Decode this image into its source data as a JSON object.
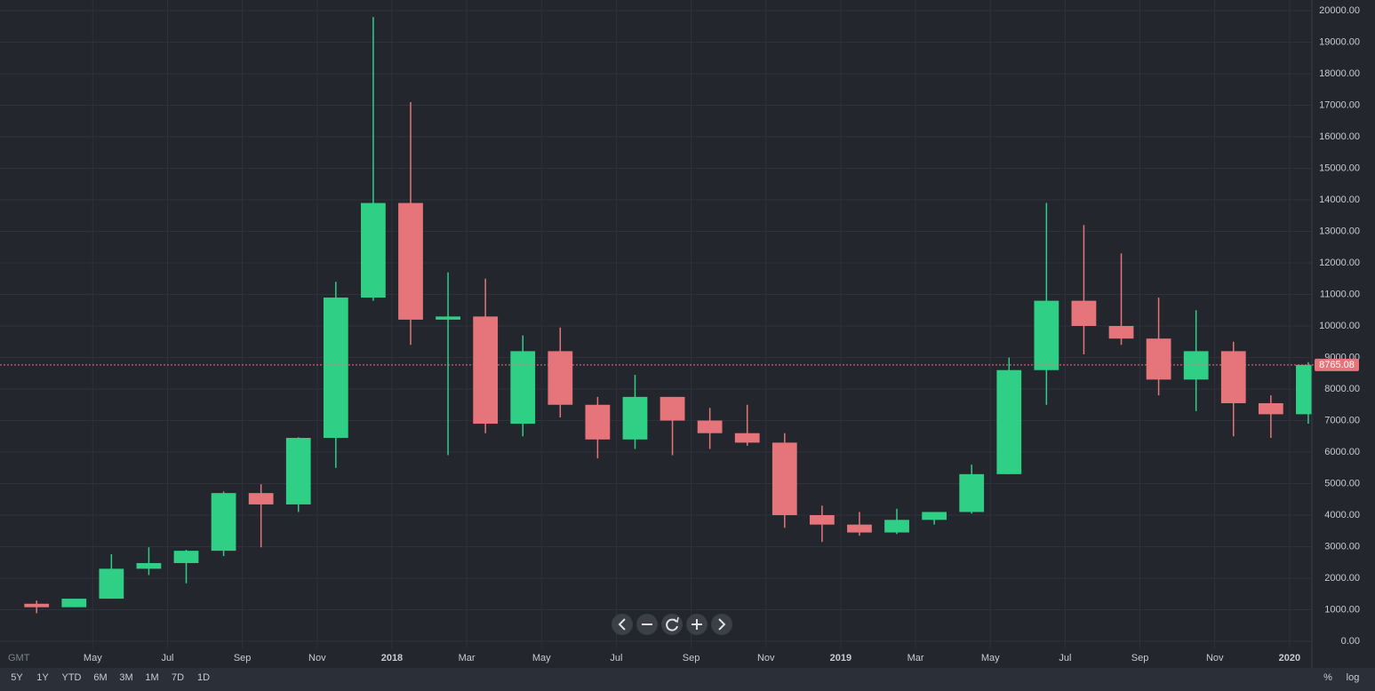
{
  "chart_data": {
    "type": "candlestick",
    "x": [
      "2017-03",
      "2017-04",
      "2017-05",
      "2017-06",
      "2017-07",
      "2017-08",
      "2017-09",
      "2017-10",
      "2017-11",
      "2017-12",
      "2018-01",
      "2018-02",
      "2018-03",
      "2018-04",
      "2018-05",
      "2018-06",
      "2018-07",
      "2018-08",
      "2018-09",
      "2018-10",
      "2018-11",
      "2018-12",
      "2019-01",
      "2019-02",
      "2019-03",
      "2019-04",
      "2019-05",
      "2019-06",
      "2019-07",
      "2019-08",
      "2019-09",
      "2019-10",
      "2019-11",
      "2019-12",
      "2020-01"
    ],
    "open": [
      1190,
      1080,
      1350,
      2300,
      2480,
      2870,
      4700,
      4340,
      6450,
      10900,
      13900,
      10200,
      10300,
      6900,
      9200,
      7500,
      6400,
      7750,
      7000,
      6600,
      6300,
      4000,
      3700,
      3450,
      3850,
      4100,
      5300,
      8600,
      10800,
      10000,
      9600,
      8300,
      9200,
      7550,
      7200
    ],
    "high": [
      1290,
      1350,
      2760,
      2980,
      2900,
      4750,
      4980,
      6470,
      11400,
      19800,
      17100,
      11700,
      11500,
      9700,
      9950,
      7750,
      8450,
      7750,
      7400,
      7500,
      6600,
      4300,
      4100,
      4200,
      4100,
      5600,
      9000,
      13900,
      13200,
      12300,
      10900,
      10500,
      9500,
      7800,
      8850
    ],
    "low": [
      890,
      1080,
      1350,
      2100,
      1840,
      2700,
      2980,
      4100,
      5500,
      10800,
      9400,
      5900,
      6600,
      6500,
      7100,
      5800,
      6100,
      5900,
      6100,
      6200,
      3600,
      3150,
      3350,
      3400,
      3700,
      4050,
      5300,
      7500,
      9100,
      9400,
      7800,
      7300,
      6500,
      6450,
      6900
    ],
    "close": [
      1080,
      1350,
      2300,
      2480,
      2870,
      4700,
      4340,
      6450,
      10900,
      13900,
      10200,
      10300,
      6900,
      9200,
      7500,
      6400,
      7750,
      7000,
      6600,
      6300,
      4000,
      3700,
      3450,
      3850,
      4100,
      5300,
      8600,
      10800,
      10000,
      9600,
      8300,
      9200,
      7550,
      7200,
      8765.08
    ],
    "up_color": "#2fcf86",
    "down_color": "#e5757a",
    "last_price": 8765.08,
    "ylim": [
      0,
      20000
    ],
    "yticks": [
      {
        "value": 0,
        "label": "0.00"
      },
      {
        "value": 1000,
        "label": "1000.00"
      },
      {
        "value": 2000,
        "label": "2000.00"
      },
      {
        "value": 3000,
        "label": "3000.00"
      },
      {
        "value": 4000,
        "label": "4000.00"
      },
      {
        "value": 5000,
        "label": "5000.00"
      },
      {
        "value": 6000,
        "label": "6000.00"
      },
      {
        "value": 7000,
        "label": "7000.00"
      },
      {
        "value": 8000,
        "label": "8000.00"
      },
      {
        "value": 9000,
        "label": "9000.00"
      },
      {
        "value": 10000,
        "label": "10000.00"
      },
      {
        "value": 11000,
        "label": "11000.00"
      },
      {
        "value": 12000,
        "label": "12000.00"
      },
      {
        "value": 13000,
        "label": "13000.00"
      },
      {
        "value": 14000,
        "label": "14000.00"
      },
      {
        "value": 15000,
        "label": "15000.00"
      },
      {
        "value": 16000,
        "label": "16000.00"
      },
      {
        "value": 17000,
        "label": "17000.00"
      },
      {
        "value": 18000,
        "label": "18000.00"
      },
      {
        "value": 19000,
        "label": "19000.00"
      },
      {
        "value": 20000,
        "label": "20000.00"
      }
    ],
    "xticks": [
      {
        "value": "2017-05",
        "label": "May"
      },
      {
        "value": "2017-07",
        "label": "Jul"
      },
      {
        "value": "2017-09",
        "label": "Sep"
      },
      {
        "value": "2017-11",
        "label": "Nov"
      },
      {
        "value": "2018-01",
        "label": "2018"
      },
      {
        "value": "2018-03",
        "label": "Mar"
      },
      {
        "value": "2018-05",
        "label": "May"
      },
      {
        "value": "2018-07",
        "label": "Jul"
      },
      {
        "value": "2018-09",
        "label": "Sep"
      },
      {
        "value": "2018-11",
        "label": "Nov"
      },
      {
        "value": "2019-01",
        "label": "2019"
      },
      {
        "value": "2019-03",
        "label": "Mar"
      },
      {
        "value": "2019-05",
        "label": "May"
      },
      {
        "value": "2019-07",
        "label": "Jul"
      },
      {
        "value": "2019-09",
        "label": "Sep"
      },
      {
        "value": "2019-11",
        "label": "Nov"
      },
      {
        "value": "2020-01",
        "label": "2020"
      }
    ],
    "grid": true,
    "log_scale": false,
    "timezone": "GMT",
    "range_buttons": [
      "5Y",
      "1Y",
      "YTD",
      "6M",
      "3M",
      "1M",
      "7D",
      "1D"
    ],
    "scale_buttons": [
      "%",
      "log"
    ]
  }
}
